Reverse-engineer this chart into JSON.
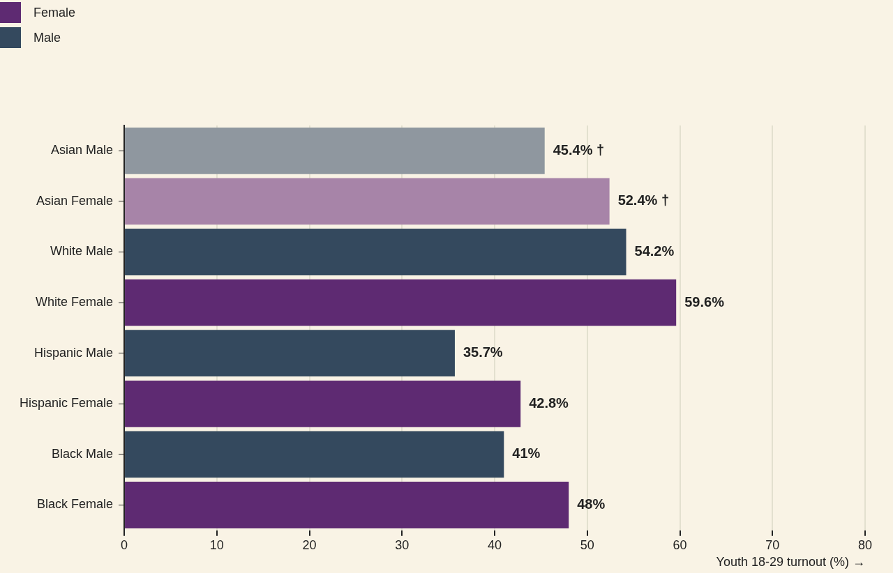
{
  "chart_data": {
    "type": "bar",
    "orientation": "horizontal",
    "stacked": true,
    "categories": [
      "Asian Male",
      "Asian Female",
      "White Male",
      "White Female",
      "Hispanic Male",
      "Hispanic Female",
      "Black Male",
      "Black Female"
    ],
    "series": [
      {
        "name": "Female",
        "color": "#5e2a72",
        "colors": [
          null,
          "#a784a8",
          null,
          "#5e2a72",
          null,
          "#5e2a72",
          null,
          "#5e2a72"
        ],
        "values": [
          null,
          52.4,
          null,
          59.6,
          null,
          42.8,
          null,
          48
        ],
        "value_labels": [
          null,
          "52.4% †",
          null,
          "59.6%",
          null,
          "42.8%",
          null,
          "48%"
        ]
      },
      {
        "name": "Male",
        "color": "#34495e",
        "colors": [
          "#8f979f",
          null,
          "#34495e",
          null,
          "#34495e",
          null,
          "#34495e",
          null
        ],
        "values": [
          45.4,
          null,
          54.2,
          null,
          35.7,
          null,
          41,
          null
        ],
        "value_labels": [
          "45.4% †",
          null,
          "54.2%",
          null,
          "35.7%",
          null,
          "41%",
          null
        ]
      }
    ],
    "xlabel": "Youth 18-29 turnout (%) →",
    "xlim": [
      0,
      80
    ],
    "xticks": [
      0,
      10,
      20,
      30,
      40,
      50,
      60,
      70,
      80
    ],
    "grid": "x",
    "legend": "top left"
  }
}
